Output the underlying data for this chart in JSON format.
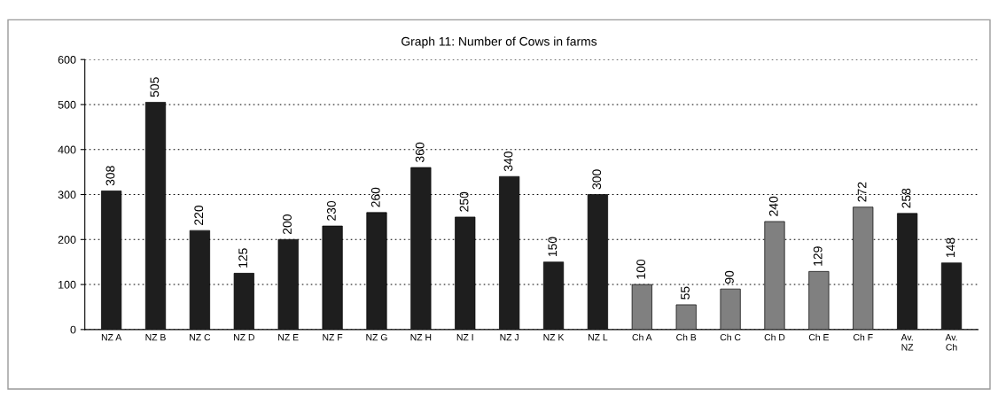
{
  "chart_data": {
    "type": "bar",
    "title": "Graph 11: Number of Cows in farms",
    "categories": [
      "NZ A",
      "NZ B",
      "NZ C",
      "NZ D",
      "NZ E",
      "NZ F",
      "NZ G",
      "NZ H",
      "NZ I",
      "NZ J",
      "NZ K",
      "NZ L",
      "Ch A",
      "Ch B",
      "Ch C",
      "Ch D",
      "Ch E",
      "Ch F",
      "Av.\nNZ",
      "Av.\nCh"
    ],
    "values": [
      308,
      505,
      220,
      125,
      200,
      230,
      260,
      360,
      250,
      340,
      150,
      300,
      100,
      55,
      90,
      240,
      129,
      272,
      258,
      148
    ],
    "colors": [
      "#1e1e1e",
      "#1e1e1e",
      "#1e1e1e",
      "#1e1e1e",
      "#1e1e1e",
      "#1e1e1e",
      "#1e1e1e",
      "#1e1e1e",
      "#1e1e1e",
      "#1e1e1e",
      "#1e1e1e",
      "#1e1e1e",
      "#808080",
      "#808080",
      "#808080",
      "#808080",
      "#808080",
      "#808080",
      "#1e1e1e",
      "#1e1e1e"
    ],
    "ylim": [
      0,
      600
    ],
    "yticks": [
      0,
      100,
      200,
      300,
      400,
      500,
      600
    ],
    "grid": "y",
    "data_labels": true
  }
}
